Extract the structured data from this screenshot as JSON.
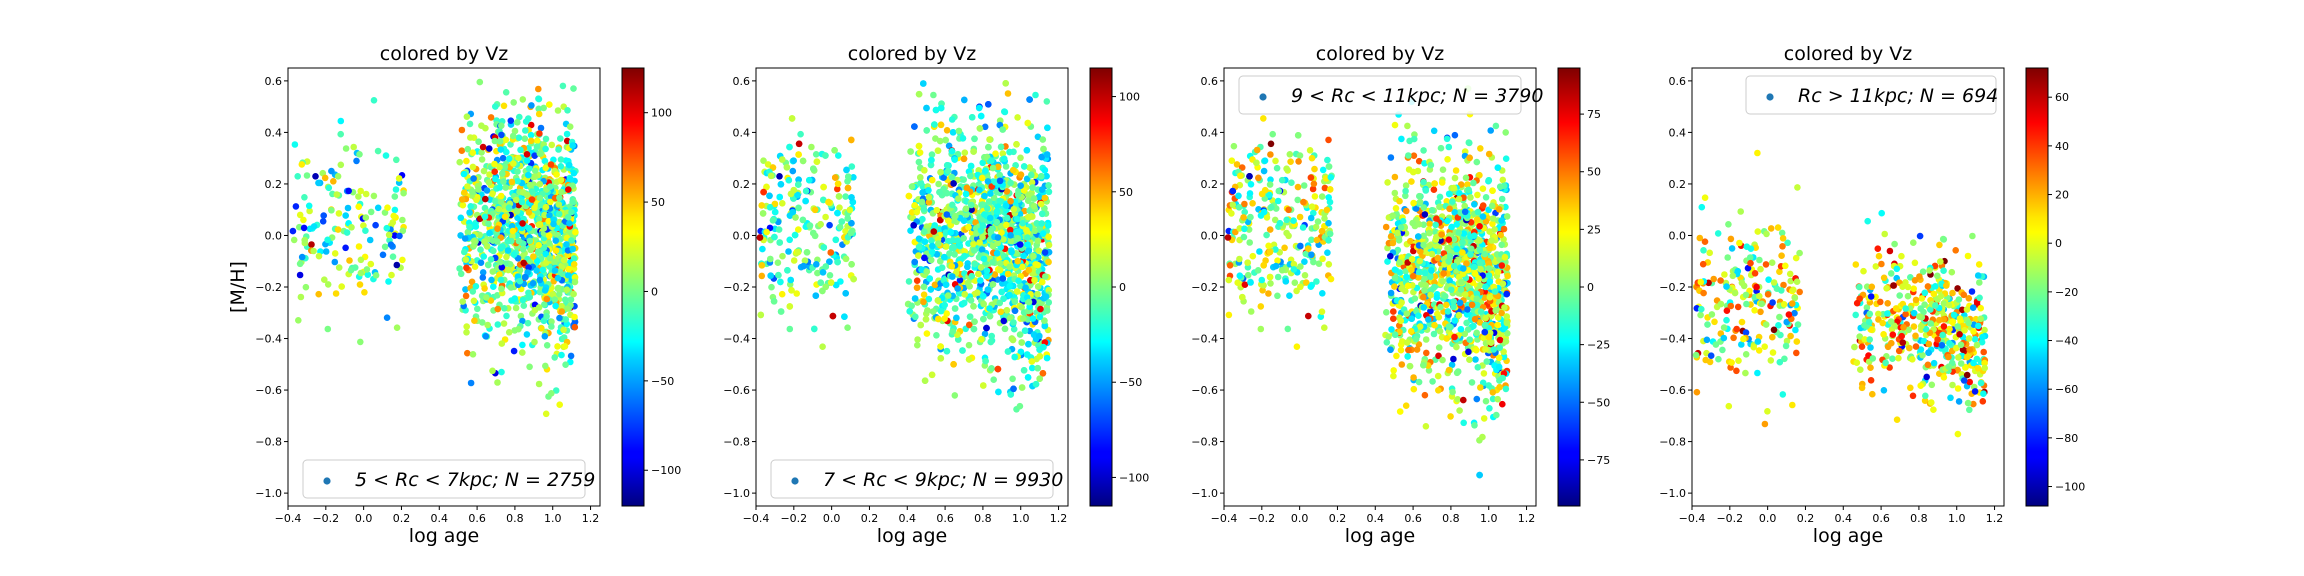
{
  "chart_data": [
    {
      "type": "scatter",
      "title": "colored by Vz",
      "xlabel": "log age",
      "ylabel": "[M/H]",
      "xlim": [
        -0.4,
        1.25
      ],
      "ylim": [
        -1.05,
        0.65
      ],
      "xticks": [
        "−0.4",
        "−0.2",
        "0.0",
        "0.2",
        "0.4",
        "0.6",
        "0.8",
        "1.0",
        "1.2"
      ],
      "yticks": [
        "−1.0",
        "−0.8",
        "−0.6",
        "−0.4",
        "−0.2",
        "0.0",
        "0.2",
        "0.4",
        "0.6"
      ],
      "colorbar": {
        "min": -120,
        "max": 125,
        "ticks": [
          "100",
          "50",
          "0",
          "−50",
          "−100"
        ]
      },
      "legend": {
        "label": "5 < Rc < 7kpc;  N = 2759",
        "placement": "lower center"
      },
      "points_shown": 2759
    },
    {
      "type": "scatter",
      "title": "colored by Vz",
      "xlabel": "log age",
      "ylabel": "",
      "xlim": [
        -0.4,
        1.25
      ],
      "ylim": [
        -1.05,
        0.65
      ],
      "xticks": [
        "−0.4",
        "−0.2",
        "0.0",
        "0.2",
        "0.4",
        "0.6",
        "0.8",
        "1.0",
        "1.2"
      ],
      "yticks": [
        "−1.0",
        "−0.8",
        "−0.6",
        "−0.4",
        "−0.2",
        "0.0",
        "0.2",
        "0.4",
        "0.6"
      ],
      "colorbar": {
        "min": -115,
        "max": 115,
        "ticks": [
          "100",
          "50",
          "0",
          "−50",
          "−100"
        ]
      },
      "legend": {
        "label": "7 < Rc < 9kpc;  N = 9930",
        "placement": "lower center"
      },
      "points_shown": 9930
    },
    {
      "type": "scatter",
      "title": "colored by Vz",
      "xlabel": "log age",
      "ylabel": "",
      "xlim": [
        -0.4,
        1.25
      ],
      "ylim": [
        -1.05,
        0.65
      ],
      "xticks": [
        "−0.4",
        "−0.2",
        "0.0",
        "0.2",
        "0.4",
        "0.6",
        "0.8",
        "1.0",
        "1.2"
      ],
      "yticks": [
        "−1.0",
        "−0.8",
        "−0.6",
        "−0.4",
        "−0.2",
        "0.0",
        "0.2",
        "0.4",
        "0.6"
      ],
      "colorbar": {
        "min": -95,
        "max": 95,
        "ticks": [
          "75",
          "50",
          "25",
          "0",
          "−25",
          "−50",
          "−75"
        ]
      },
      "legend": {
        "label": "9 < Rc < 11kpc;  N = 3790",
        "placement": "upper center"
      },
      "points_shown": 3790
    },
    {
      "type": "scatter",
      "title": "colored by Vz",
      "xlabel": "log age",
      "ylabel": "",
      "xlim": [
        -0.4,
        1.25
      ],
      "ylim": [
        -1.05,
        0.65
      ],
      "xticks": [
        "−0.4",
        "−0.2",
        "0.0",
        "0.2",
        "0.4",
        "0.6",
        "0.8",
        "1.0",
        "1.2"
      ],
      "yticks": [
        "−1.0",
        "−0.8",
        "−0.6",
        "−0.4",
        "−0.2",
        "0.0",
        "0.2",
        "0.4",
        "0.6"
      ],
      "colorbar": {
        "min": -108,
        "max": 72,
        "ticks": [
          "60",
          "40",
          "20",
          "0",
          "−20",
          "−40",
          "−60",
          "−80",
          "−100"
        ]
      },
      "legend": {
        "label": "Rc > 11kpc;  N = 694",
        "placement": "upper right"
      },
      "points_shown": 694
    }
  ],
  "colormap": "jet",
  "marker_color": "#1f77b4"
}
